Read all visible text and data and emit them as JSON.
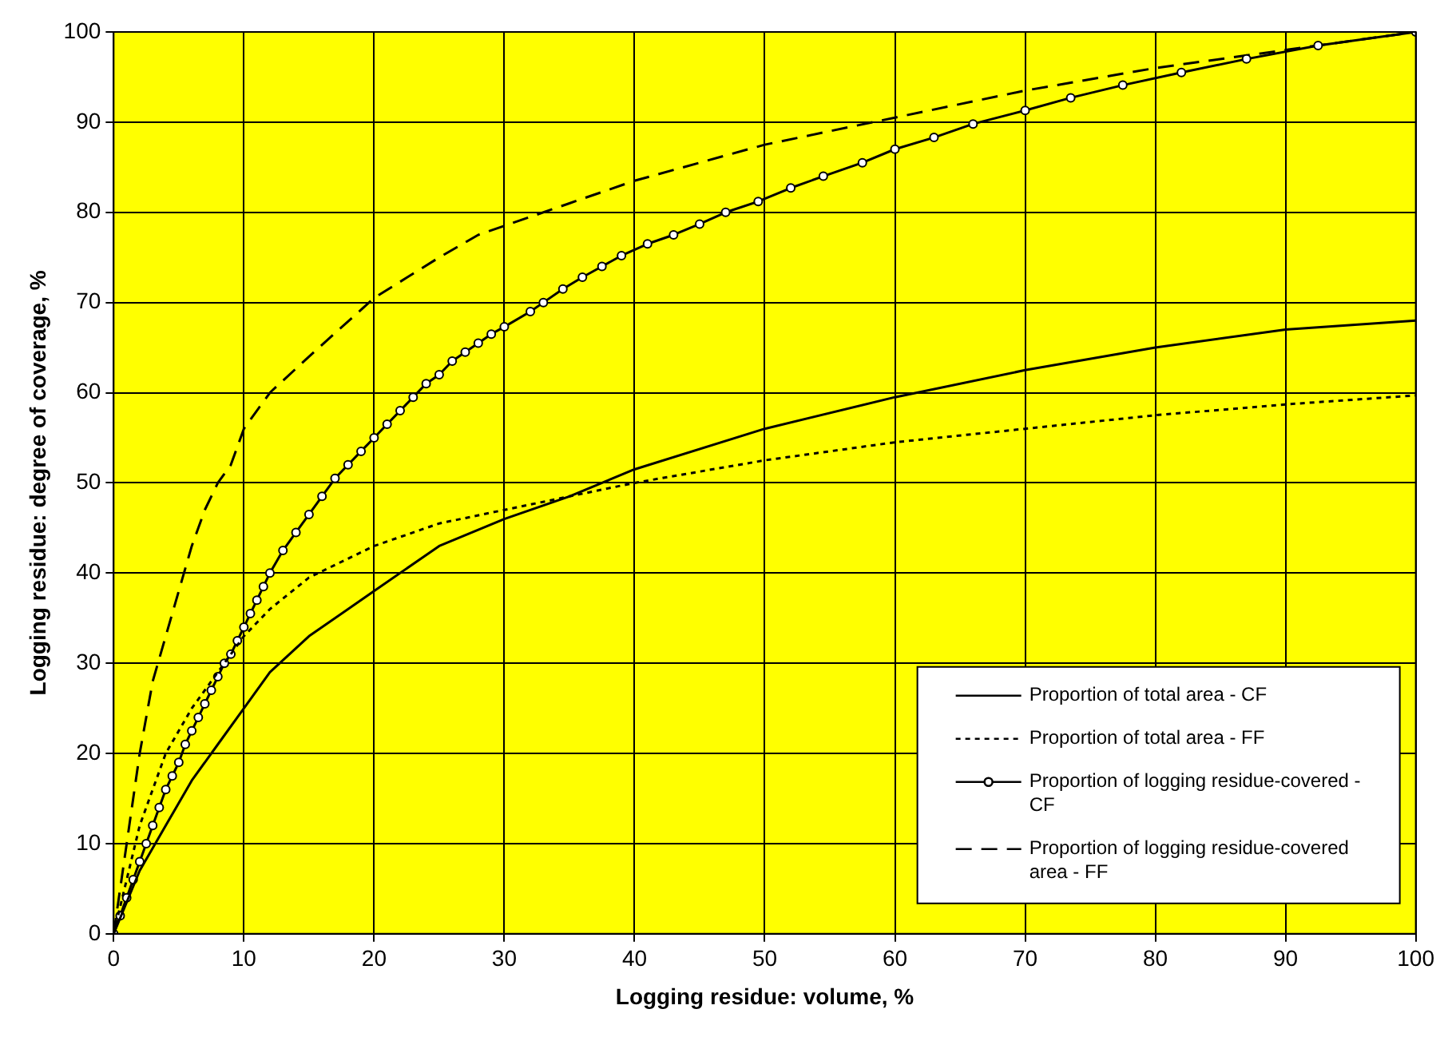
{
  "chart_data": {
    "type": "line",
    "xlabel": "Logging residue: volume, %",
    "ylabel": "Logging residue: degree of coverage, %",
    "xlim": [
      0,
      100
    ],
    "ylim": [
      0,
      100
    ],
    "xticks": [
      0,
      10,
      20,
      30,
      40,
      50,
      60,
      70,
      80,
      90,
      100
    ],
    "yticks": [
      0,
      10,
      20,
      30,
      40,
      50,
      60,
      70,
      80,
      90,
      100
    ],
    "grid": true,
    "legend": "bottom right",
    "series": [
      {
        "name": "Proportion of total area - CF",
        "color": "#000000",
        "line_style": "solid",
        "marker": "none",
        "x": [
          0,
          2,
          4,
          6,
          8,
          10,
          12,
          15,
          20,
          25,
          30,
          35,
          40,
          50,
          60,
          70,
          80,
          90,
          100
        ],
        "values": [
          0,
          7,
          12,
          17,
          21,
          25,
          29,
          33,
          38,
          43,
          46,
          48.5,
          51.5,
          56,
          59.5,
          62.5,
          65,
          67,
          68
        ]
      },
      {
        "name": "Proportion of total area - FF",
        "color": "#000000",
        "line_style": "dotted",
        "marker": "none",
        "x": [
          0,
          2,
          4,
          6,
          8,
          10,
          12,
          15,
          20,
          25,
          30,
          35,
          40,
          50,
          60,
          70,
          80,
          90,
          100
        ],
        "values": [
          0,
          12,
          20,
          25,
          29,
          33,
          36,
          39.5,
          43,
          45.5,
          47,
          48.5,
          50,
          52.5,
          54.5,
          56,
          57.5,
          58.7,
          59.7
        ]
      },
      {
        "name": "Proportion of logging residue-covered - CF",
        "color": "#000000",
        "line_style": "solid",
        "marker": "circle",
        "x": [
          0,
          0.5,
          1,
          1.5,
          2,
          2.5,
          3,
          3.5,
          4,
          4.5,
          5,
          5.5,
          6,
          6.5,
          7,
          7.5,
          8,
          8.5,
          9,
          9.5,
          10,
          10.5,
          11,
          11.5,
          12,
          13,
          14,
          15,
          16,
          17,
          18,
          19,
          20,
          21,
          22,
          23,
          24,
          25,
          26,
          27,
          28,
          29,
          30,
          32,
          33,
          34.5,
          36,
          37.5,
          39,
          41,
          43,
          45,
          47,
          49.5,
          52,
          54.5,
          57.5,
          60,
          63,
          66,
          70,
          73.5,
          77.5,
          82,
          87,
          92.5,
          100
        ],
        "values": [
          0,
          2,
          4,
          6,
          8,
          10,
          12,
          14,
          16,
          17.5,
          19,
          21,
          22.5,
          24,
          25.5,
          27,
          28.5,
          30,
          31,
          32.5,
          34,
          35.5,
          37,
          38.5,
          40,
          42.5,
          44.5,
          46.5,
          48.5,
          50.5,
          52,
          53.5,
          55,
          56.5,
          58,
          59.5,
          61,
          62,
          63.5,
          64.5,
          65.5,
          66.5,
          67.3,
          69,
          70,
          71.5,
          72.8,
          74,
          75.2,
          76.5,
          77.5,
          78.7,
          80,
          81.2,
          82.7,
          84,
          85.5,
          87,
          88.3,
          89.8,
          91.3,
          92.7,
          94.1,
          95.5,
          97,
          98.5,
          100
        ]
      },
      {
        "name": "Proportion of logging residue-covered area - FF",
        "color": "#000000",
        "line_style": "dashed",
        "marker": "none",
        "x": [
          0,
          1,
          2,
          3,
          4,
          5,
          6,
          7,
          8,
          9,
          10,
          12,
          15,
          20,
          25,
          28,
          30,
          35,
          40,
          50,
          60,
          70,
          80,
          90,
          100
        ],
        "values": [
          0,
          10,
          20,
          28,
          33,
          38,
          43,
          47,
          50,
          52,
          56,
          60,
          64,
          70.5,
          75,
          77.5,
          78.5,
          81,
          83.5,
          87.5,
          90.5,
          93.5,
          96,
          98,
          100
        ]
      }
    ]
  }
}
